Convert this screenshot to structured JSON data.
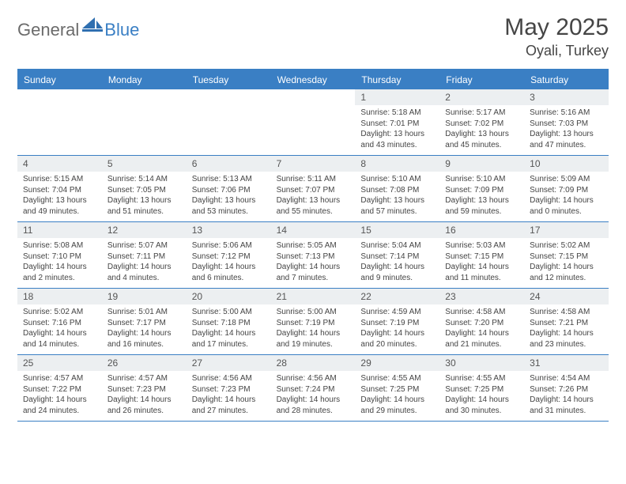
{
  "brand": {
    "part1": "General",
    "part2": "Blue"
  },
  "title": "May 2025",
  "location": "Oyali, Turkey",
  "colors": {
    "header_bg": "#3a7fc4",
    "header_text": "#ffffff",
    "daynum_bg": "#eceff1",
    "border": "#3a7fc4",
    "text": "#444444"
  },
  "day_names": [
    "Sunday",
    "Monday",
    "Tuesday",
    "Wednesday",
    "Thursday",
    "Friday",
    "Saturday"
  ],
  "weeks": [
    [
      {
        "n": "",
        "sr": "",
        "ss": "",
        "dl": ""
      },
      {
        "n": "",
        "sr": "",
        "ss": "",
        "dl": ""
      },
      {
        "n": "",
        "sr": "",
        "ss": "",
        "dl": ""
      },
      {
        "n": "",
        "sr": "",
        "ss": "",
        "dl": ""
      },
      {
        "n": "1",
        "sr": "Sunrise: 5:18 AM",
        "ss": "Sunset: 7:01 PM",
        "dl": "Daylight: 13 hours and 43 minutes."
      },
      {
        "n": "2",
        "sr": "Sunrise: 5:17 AM",
        "ss": "Sunset: 7:02 PM",
        "dl": "Daylight: 13 hours and 45 minutes."
      },
      {
        "n": "3",
        "sr": "Sunrise: 5:16 AM",
        "ss": "Sunset: 7:03 PM",
        "dl": "Daylight: 13 hours and 47 minutes."
      }
    ],
    [
      {
        "n": "4",
        "sr": "Sunrise: 5:15 AM",
        "ss": "Sunset: 7:04 PM",
        "dl": "Daylight: 13 hours and 49 minutes."
      },
      {
        "n": "5",
        "sr": "Sunrise: 5:14 AM",
        "ss": "Sunset: 7:05 PM",
        "dl": "Daylight: 13 hours and 51 minutes."
      },
      {
        "n": "6",
        "sr": "Sunrise: 5:13 AM",
        "ss": "Sunset: 7:06 PM",
        "dl": "Daylight: 13 hours and 53 minutes."
      },
      {
        "n": "7",
        "sr": "Sunrise: 5:11 AM",
        "ss": "Sunset: 7:07 PM",
        "dl": "Daylight: 13 hours and 55 minutes."
      },
      {
        "n": "8",
        "sr": "Sunrise: 5:10 AM",
        "ss": "Sunset: 7:08 PM",
        "dl": "Daylight: 13 hours and 57 minutes."
      },
      {
        "n": "9",
        "sr": "Sunrise: 5:10 AM",
        "ss": "Sunset: 7:09 PM",
        "dl": "Daylight: 13 hours and 59 minutes."
      },
      {
        "n": "10",
        "sr": "Sunrise: 5:09 AM",
        "ss": "Sunset: 7:09 PM",
        "dl": "Daylight: 14 hours and 0 minutes."
      }
    ],
    [
      {
        "n": "11",
        "sr": "Sunrise: 5:08 AM",
        "ss": "Sunset: 7:10 PM",
        "dl": "Daylight: 14 hours and 2 minutes."
      },
      {
        "n": "12",
        "sr": "Sunrise: 5:07 AM",
        "ss": "Sunset: 7:11 PM",
        "dl": "Daylight: 14 hours and 4 minutes."
      },
      {
        "n": "13",
        "sr": "Sunrise: 5:06 AM",
        "ss": "Sunset: 7:12 PM",
        "dl": "Daylight: 14 hours and 6 minutes."
      },
      {
        "n": "14",
        "sr": "Sunrise: 5:05 AM",
        "ss": "Sunset: 7:13 PM",
        "dl": "Daylight: 14 hours and 7 minutes."
      },
      {
        "n": "15",
        "sr": "Sunrise: 5:04 AM",
        "ss": "Sunset: 7:14 PM",
        "dl": "Daylight: 14 hours and 9 minutes."
      },
      {
        "n": "16",
        "sr": "Sunrise: 5:03 AM",
        "ss": "Sunset: 7:15 PM",
        "dl": "Daylight: 14 hours and 11 minutes."
      },
      {
        "n": "17",
        "sr": "Sunrise: 5:02 AM",
        "ss": "Sunset: 7:15 PM",
        "dl": "Daylight: 14 hours and 12 minutes."
      }
    ],
    [
      {
        "n": "18",
        "sr": "Sunrise: 5:02 AM",
        "ss": "Sunset: 7:16 PM",
        "dl": "Daylight: 14 hours and 14 minutes."
      },
      {
        "n": "19",
        "sr": "Sunrise: 5:01 AM",
        "ss": "Sunset: 7:17 PM",
        "dl": "Daylight: 14 hours and 16 minutes."
      },
      {
        "n": "20",
        "sr": "Sunrise: 5:00 AM",
        "ss": "Sunset: 7:18 PM",
        "dl": "Daylight: 14 hours and 17 minutes."
      },
      {
        "n": "21",
        "sr": "Sunrise: 5:00 AM",
        "ss": "Sunset: 7:19 PM",
        "dl": "Daylight: 14 hours and 19 minutes."
      },
      {
        "n": "22",
        "sr": "Sunrise: 4:59 AM",
        "ss": "Sunset: 7:19 PM",
        "dl": "Daylight: 14 hours and 20 minutes."
      },
      {
        "n": "23",
        "sr": "Sunrise: 4:58 AM",
        "ss": "Sunset: 7:20 PM",
        "dl": "Daylight: 14 hours and 21 minutes."
      },
      {
        "n": "24",
        "sr": "Sunrise: 4:58 AM",
        "ss": "Sunset: 7:21 PM",
        "dl": "Daylight: 14 hours and 23 minutes."
      }
    ],
    [
      {
        "n": "25",
        "sr": "Sunrise: 4:57 AM",
        "ss": "Sunset: 7:22 PM",
        "dl": "Daylight: 14 hours and 24 minutes."
      },
      {
        "n": "26",
        "sr": "Sunrise: 4:57 AM",
        "ss": "Sunset: 7:23 PM",
        "dl": "Daylight: 14 hours and 26 minutes."
      },
      {
        "n": "27",
        "sr": "Sunrise: 4:56 AM",
        "ss": "Sunset: 7:23 PM",
        "dl": "Daylight: 14 hours and 27 minutes."
      },
      {
        "n": "28",
        "sr": "Sunrise: 4:56 AM",
        "ss": "Sunset: 7:24 PM",
        "dl": "Daylight: 14 hours and 28 minutes."
      },
      {
        "n": "29",
        "sr": "Sunrise: 4:55 AM",
        "ss": "Sunset: 7:25 PM",
        "dl": "Daylight: 14 hours and 29 minutes."
      },
      {
        "n": "30",
        "sr": "Sunrise: 4:55 AM",
        "ss": "Sunset: 7:25 PM",
        "dl": "Daylight: 14 hours and 30 minutes."
      },
      {
        "n": "31",
        "sr": "Sunrise: 4:54 AM",
        "ss": "Sunset: 7:26 PM",
        "dl": "Daylight: 14 hours and 31 minutes."
      }
    ]
  ]
}
